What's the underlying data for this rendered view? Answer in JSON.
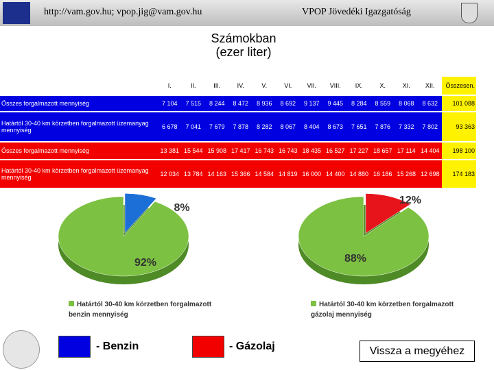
{
  "header": {
    "contact": "http://vam.gov.hu; vpop.jig@vam.gov.hu",
    "org": "VPOP Jövedéki Igazgatóság"
  },
  "title": [
    "Számokban",
    "(ezer liter)"
  ],
  "table": {
    "columns": [
      "I.",
      "II.",
      "III.",
      "IV.",
      "V.",
      "VI.",
      "VII.",
      "VIII.",
      "IX.",
      "X.",
      "XI.",
      "XII.",
      "Összesen."
    ],
    "rows": [
      [
        "Összes forgalmazott mennyiség",
        "7 104",
        "7 515",
        "8 244",
        "8 472",
        "8 936",
        "8 692",
        "9 137",
        "9 445",
        "8 284",
        "8 559",
        "8 068",
        "8 632",
        "101 088"
      ],
      [
        "Határtól 30-40 km körzetben forgalmazott üzemanyag mennyiség",
        "6 678",
        "7 041",
        "7 679",
        "7 878",
        "8 282",
        "8 067",
        "8 404",
        "8 673",
        "7 651",
        "7 876",
        "7 332",
        "7 802",
        "93 363"
      ],
      [
        "Összes forgalmazott mennyiség",
        "13 381",
        "15 544",
        "15 908",
        "17 417",
        "16 743",
        "16 743",
        "18 435",
        "16 527",
        "17 227",
        "18 657",
        "17 114",
        "14 404",
        "198 100"
      ],
      [
        "Határtól 30-40 km körzetben forgalmazott üzemanyag mennyiség",
        "12 034",
        "13 784",
        "14 163",
        "15 366",
        "14 584",
        "14 819",
        "16 000",
        "14 400",
        "14 880",
        "16 186",
        "15 268",
        "12 698",
        "174 183"
      ]
    ]
  },
  "chart_data": [
    {
      "type": "pie",
      "values": [
        8,
        92
      ],
      "value_labels": [
        "8%",
        "92%"
      ],
      "colors": [
        "#1b6fd6",
        "#7cc142"
      ],
      "legend": [
        "Határtól 30-40 km körzetben forgalmazott",
        "benzin mennyiség"
      ]
    },
    {
      "type": "pie",
      "values": [
        12,
        88
      ],
      "value_labels": [
        "12%",
        "88%"
      ],
      "colors": [
        "#e8141b",
        "#7cc142"
      ],
      "legend": [
        "Határtól 30-40 km körzetben forgalmazott",
        "gázolaj mennyiség"
      ]
    }
  ],
  "key": {
    "benzin": "- Benzin",
    "gazolaj": "- Gázolaj"
  },
  "button": "Vissza a megyéhez"
}
